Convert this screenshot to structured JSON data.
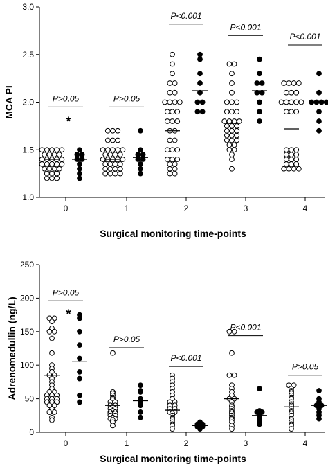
{
  "chart_data": [
    {
      "type": "scatter",
      "title": "",
      "xlabel": "Surgical monitoring time-points",
      "ylabel": "MCA PI",
      "ylim": [
        1.0,
        3.0
      ],
      "yticks": [
        "1.0",
        "1.5",
        "2.0",
        "2.5",
        "3.0"
      ],
      "categories": [
        "0",
        "1",
        "2",
        "3",
        "4"
      ],
      "grid": false,
      "legend": "none",
      "series": [
        {
          "marker": "open-circle",
          "values": [
            [
              1.2,
              1.2,
              1.2,
              1.25,
              1.25,
              1.25,
              1.3,
              1.3,
              1.3,
              1.3,
              1.35,
              1.35,
              1.35,
              1.35,
              1.35,
              1.4,
              1.4,
              1.4,
              1.4,
              1.4,
              1.45,
              1.45,
              1.45,
              1.45,
              1.5,
              1.5,
              1.5,
              1.5,
              1.5
            ],
            [
              1.25,
              1.25,
              1.25,
              1.25,
              1.3,
              1.3,
              1.3,
              1.3,
              1.35,
              1.35,
              1.35,
              1.35,
              1.4,
              1.4,
              1.4,
              1.4,
              1.4,
              1.45,
              1.45,
              1.45,
              1.45,
              1.5,
              1.5,
              1.5,
              1.5,
              1.5,
              1.6,
              1.6,
              1.6,
              1.7,
              1.7,
              1.7
            ],
            [
              1.25,
              1.25,
              1.3,
              1.3,
              1.35,
              1.35,
              1.4,
              1.4,
              1.4,
              1.5,
              1.5,
              1.5,
              1.6,
              1.6,
              1.7,
              1.7,
              1.8,
              1.8,
              1.8,
              1.9,
              1.9,
              1.9,
              2.0,
              2.0,
              2.0,
              2.0,
              2.1,
              2.1,
              2.2,
              2.2,
              2.3,
              2.4,
              2.5
            ],
            [
              1.3,
              1.4,
              1.45,
              1.5,
              1.5,
              1.55,
              1.55,
              1.6,
              1.6,
              1.6,
              1.65,
              1.65,
              1.65,
              1.7,
              1.7,
              1.7,
              1.75,
              1.75,
              1.75,
              1.8,
              1.8,
              1.8,
              1.8,
              1.9,
              1.9,
              1.9,
              2.0,
              2.0,
              2.0,
              2.1,
              2.2,
              2.3,
              2.4,
              2.4
            ],
            [
              1.3,
              1.3,
              1.3,
              1.3,
              1.35,
              1.35,
              1.35,
              1.4,
              1.4,
              1.4,
              1.45,
              1.45,
              1.45,
              1.5,
              1.5,
              1.5,
              1.9,
              1.9,
              1.9,
              2.0,
              2.0,
              2.0,
              2.0,
              2.0,
              2.1,
              2.1,
              2.1,
              2.2,
              2.2,
              2.2,
              2.2
            ]
          ],
          "means": [
            1.4,
            1.4,
            1.7,
            1.78,
            1.72
          ]
        },
        {
          "marker": "filled-circle",
          "values": [
            [
              1.2,
              1.25,
              1.3,
              1.35,
              1.4,
              1.4,
              1.45,
              1.45,
              1.5
            ],
            [
              1.25,
              1.3,
              1.35,
              1.4,
              1.4,
              1.45,
              1.45,
              1.5,
              1.7
            ],
            [
              1.9,
              1.9,
              2.0,
              2.0,
              2.1,
              2.2,
              2.3,
              2.45,
              2.5
            ],
            [
              1.8,
              1.9,
              2.0,
              2.1,
              2.1,
              2.2,
              2.2,
              2.3,
              2.45
            ],
            [
              1.7,
              1.8,
              1.9,
              2.0,
              2.0,
              2.0,
              2.0,
              2.1,
              2.3
            ]
          ],
          "means": [
            1.4,
            1.42,
            2.12,
            2.12,
            1.99
          ]
        }
      ],
      "annotations": {
        "significance": [
          {
            "category": "0",
            "text": "P>0.05",
            "bar_value": 1.95
          },
          {
            "category": "1",
            "text": "P>0.05",
            "bar_value": 1.95
          },
          {
            "category": "2",
            "text": "P<0.001",
            "bar_value": 2.82
          },
          {
            "category": "3",
            "text": "P<0.001",
            "bar_value": 2.7
          },
          {
            "category": "4",
            "text": "P<0.001",
            "bar_value": 2.6
          }
        ],
        "stars": [
          {
            "category": "0",
            "value": 1.81,
            "text": "*"
          }
        ]
      }
    },
    {
      "type": "scatter",
      "title": "",
      "xlabel": "Surgical monitoring time-points",
      "ylabel": "Adrenomedullin (ng/L)",
      "ylim": [
        0,
        250
      ],
      "yticks": [
        "0",
        "50",
        "100",
        "150",
        "200",
        "250"
      ],
      "categories": [
        "0",
        "1",
        "2",
        "3",
        "4"
      ],
      "grid": false,
      "legend": "none",
      "series": [
        {
          "marker": "open-circle",
          "values": [
            [
              18,
              22,
              30,
              30,
              35,
              40,
              40,
              45,
              45,
              45,
              50,
              50,
              50,
              55,
              55,
              55,
              60,
              60,
              65,
              70,
              75,
              80,
              85,
              85,
              90,
              95,
              100,
              118,
              140,
              150,
              150,
              155,
              165,
              170,
              170
            ],
            [
              10,
              15,
              18,
              20,
              20,
              22,
              25,
              25,
              28,
              28,
              30,
              30,
              32,
              35,
              35,
              38,
              40,
              40,
              45,
              45,
              48,
              50,
              52,
              55,
              58,
              60,
              118
            ],
            [
              5,
              10,
              12,
              15,
              18,
              20,
              22,
              25,
              28,
              30,
              30,
              35,
              35,
              40,
              40,
              45,
              45,
              50,
              55,
              60,
              65,
              70,
              75,
              80,
              85
            ],
            [
              5,
              10,
              15,
              18,
              20,
              22,
              25,
              28,
              30,
              32,
              35,
              38,
              40,
              45,
              50,
              50,
              55,
              60,
              65,
              70,
              85,
              85,
              118,
              150,
              150
            ],
            [
              5,
              10,
              12,
              15,
              18,
              20,
              25,
              28,
              30,
              32,
              35,
              38,
              40,
              42,
              45,
              50,
              52,
              55,
              58,
              60,
              62,
              65,
              70,
              70
            ]
          ],
          "means": [
            85,
            40,
            33,
            50,
            38
          ]
        },
        {
          "marker": "filled-circle",
          "values": [
            [
              45,
              55,
              80,
              90,
              110,
              130,
              150,
              170,
              175
            ],
            [
              22,
              30,
              40,
              45,
              47,
              50,
              60,
              62,
              70
            ],
            [
              5,
              6,
              8,
              8,
              10,
              10,
              12,
              12,
              15
            ],
            [
              12,
              15,
              20,
              25,
              28,
              30,
              30,
              32,
              65
            ],
            [
              20,
              25,
              30,
              35,
              40,
              40,
              45,
              50,
              62
            ]
          ],
          "means": [
            105,
            47,
            10,
            25,
            40
          ]
        }
      ],
      "annotations": {
        "significance": [
          {
            "category": "0",
            "text": "P>0.05",
            "bar_value": 196
          },
          {
            "category": "1",
            "text": "P>0.05",
            "bar_value": 126
          },
          {
            "category": "2",
            "text": "P<0.001",
            "bar_value": 98
          },
          {
            "category": "3",
            "text": "P<0.001",
            "bar_value": 144
          },
          {
            "category": "4",
            "text": "P>0.05",
            "bar_value": 85
          }
        ],
        "stars": [
          {
            "category": "0",
            "value": 178,
            "text": "*"
          }
        ]
      }
    }
  ]
}
